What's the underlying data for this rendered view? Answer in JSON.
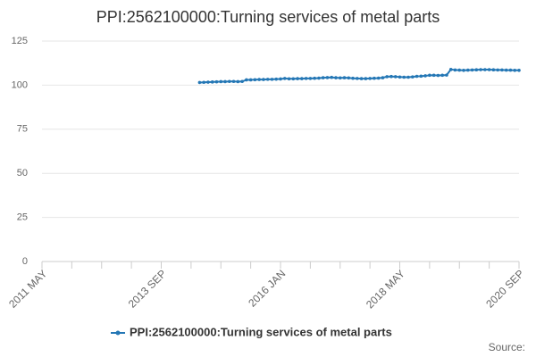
{
  "chart_data": {
    "type": "line",
    "title": "PPI:2562100000:Turning services of metal parts",
    "categories": [
      "2011 MAY",
      null,
      null,
      null,
      null,
      null,
      null,
      null,
      null,
      null,
      null,
      null,
      null,
      null,
      null,
      null,
      null,
      null,
      null,
      null,
      null,
      null,
      null,
      null,
      null,
      null,
      null,
      null,
      "2013 SEP",
      null,
      null,
      null,
      null,
      null,
      null,
      null,
      null,
      null,
      null,
      null,
      null,
      null,
      null,
      null,
      null,
      null,
      null,
      null,
      null,
      null,
      null,
      null,
      null,
      null,
      null,
      null,
      "2016 JAN",
      null,
      null,
      null,
      null,
      null,
      null,
      null,
      null,
      null,
      null,
      null,
      null,
      null,
      null,
      null,
      null,
      null,
      null,
      null,
      null,
      null,
      null,
      null,
      null,
      null,
      null,
      null,
      "2018 MAY",
      null,
      null,
      null,
      null,
      null,
      null,
      null,
      null,
      null,
      null,
      null,
      null,
      null,
      null,
      null,
      null,
      null,
      null,
      null,
      null,
      null,
      null,
      null,
      null,
      null,
      null,
      null,
      "2020 SEP"
    ],
    "series": [
      {
        "name": "PPI:2562100000:Turning services of metal parts",
        "color": "#2477b5",
        "values": [
          null,
          null,
          null,
          null,
          null,
          null,
          null,
          null,
          null,
          null,
          null,
          null,
          null,
          null,
          null,
          null,
          null,
          null,
          null,
          null,
          null,
          null,
          null,
          null,
          null,
          null,
          null,
          null,
          null,
          null,
          null,
          null,
          null,
          null,
          null,
          null,
          null,
          101.5,
          101.6,
          101.7,
          101.8,
          101.9,
          102.0,
          102.0,
          102.1,
          102.1,
          102.0,
          102.1,
          103.0,
          103.0,
          103.1,
          103.2,
          103.2,
          103.3,
          103.3,
          103.4,
          103.5,
          103.8,
          103.6,
          103.6,
          103.7,
          103.7,
          103.8,
          103.8,
          103.9,
          104.0,
          104.2,
          104.3,
          104.4,
          104.2,
          104.1,
          104.2,
          104.1,
          103.9,
          103.8,
          103.7,
          103.7,
          103.8,
          103.9,
          104.0,
          104.2,
          104.8,
          104.9,
          104.8,
          104.6,
          104.5,
          104.5,
          104.7,
          105.0,
          105.1,
          105.3,
          105.6,
          105.6,
          105.5,
          105.6,
          105.7,
          108.9,
          108.6,
          108.5,
          108.4,
          108.5,
          108.6,
          108.7,
          108.8,
          108.8,
          108.8,
          108.7,
          108.6,
          108.6,
          108.5,
          108.5,
          108.4,
          108.4
        ]
      }
    ],
    "ylim": [
      0,
      125
    ],
    "yticks": [
      0,
      25,
      50,
      75,
      100,
      125
    ],
    "grid": true,
    "legend": "bottom",
    "source_label": "Source:"
  }
}
